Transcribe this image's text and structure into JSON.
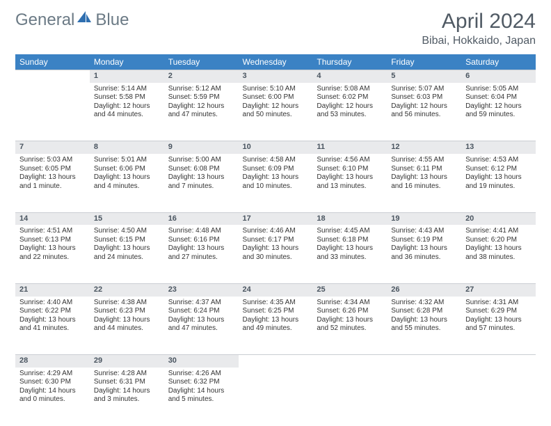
{
  "brand": {
    "part1": "General",
    "part2": "Blue"
  },
  "title": "April 2024",
  "location": "Bibai, Hokkaido, Japan",
  "weekdays": [
    "Sunday",
    "Monday",
    "Tuesday",
    "Wednesday",
    "Thursday",
    "Friday",
    "Saturday"
  ],
  "colors": {
    "header_bg": "#3b82c4",
    "header_fg": "#ffffff",
    "daynum_bg": "#e9eaec",
    "text": "#333333",
    "title_color": "#505a64",
    "logo_gray": "#6b7a85",
    "logo_blue": "#2f6fb0"
  },
  "start_offset": 1,
  "days": [
    {
      "n": 1,
      "sunrise": "5:14 AM",
      "sunset": "5:58 PM",
      "daylight": "12 hours and 44 minutes."
    },
    {
      "n": 2,
      "sunrise": "5:12 AM",
      "sunset": "5:59 PM",
      "daylight": "12 hours and 47 minutes."
    },
    {
      "n": 3,
      "sunrise": "5:10 AM",
      "sunset": "6:00 PM",
      "daylight": "12 hours and 50 minutes."
    },
    {
      "n": 4,
      "sunrise": "5:08 AM",
      "sunset": "6:02 PM",
      "daylight": "12 hours and 53 minutes."
    },
    {
      "n": 5,
      "sunrise": "5:07 AM",
      "sunset": "6:03 PM",
      "daylight": "12 hours and 56 minutes."
    },
    {
      "n": 6,
      "sunrise": "5:05 AM",
      "sunset": "6:04 PM",
      "daylight": "12 hours and 59 minutes."
    },
    {
      "n": 7,
      "sunrise": "5:03 AM",
      "sunset": "6:05 PM",
      "daylight": "13 hours and 1 minute."
    },
    {
      "n": 8,
      "sunrise": "5:01 AM",
      "sunset": "6:06 PM",
      "daylight": "13 hours and 4 minutes."
    },
    {
      "n": 9,
      "sunrise": "5:00 AM",
      "sunset": "6:08 PM",
      "daylight": "13 hours and 7 minutes."
    },
    {
      "n": 10,
      "sunrise": "4:58 AM",
      "sunset": "6:09 PM",
      "daylight": "13 hours and 10 minutes."
    },
    {
      "n": 11,
      "sunrise": "4:56 AM",
      "sunset": "6:10 PM",
      "daylight": "13 hours and 13 minutes."
    },
    {
      "n": 12,
      "sunrise": "4:55 AM",
      "sunset": "6:11 PM",
      "daylight": "13 hours and 16 minutes."
    },
    {
      "n": 13,
      "sunrise": "4:53 AM",
      "sunset": "6:12 PM",
      "daylight": "13 hours and 19 minutes."
    },
    {
      "n": 14,
      "sunrise": "4:51 AM",
      "sunset": "6:13 PM",
      "daylight": "13 hours and 22 minutes."
    },
    {
      "n": 15,
      "sunrise": "4:50 AM",
      "sunset": "6:15 PM",
      "daylight": "13 hours and 24 minutes."
    },
    {
      "n": 16,
      "sunrise": "4:48 AM",
      "sunset": "6:16 PM",
      "daylight": "13 hours and 27 minutes."
    },
    {
      "n": 17,
      "sunrise": "4:46 AM",
      "sunset": "6:17 PM",
      "daylight": "13 hours and 30 minutes."
    },
    {
      "n": 18,
      "sunrise": "4:45 AM",
      "sunset": "6:18 PM",
      "daylight": "13 hours and 33 minutes."
    },
    {
      "n": 19,
      "sunrise": "4:43 AM",
      "sunset": "6:19 PM",
      "daylight": "13 hours and 36 minutes."
    },
    {
      "n": 20,
      "sunrise": "4:41 AM",
      "sunset": "6:20 PM",
      "daylight": "13 hours and 38 minutes."
    },
    {
      "n": 21,
      "sunrise": "4:40 AM",
      "sunset": "6:22 PM",
      "daylight": "13 hours and 41 minutes."
    },
    {
      "n": 22,
      "sunrise": "4:38 AM",
      "sunset": "6:23 PM",
      "daylight": "13 hours and 44 minutes."
    },
    {
      "n": 23,
      "sunrise": "4:37 AM",
      "sunset": "6:24 PM",
      "daylight": "13 hours and 47 minutes."
    },
    {
      "n": 24,
      "sunrise": "4:35 AM",
      "sunset": "6:25 PM",
      "daylight": "13 hours and 49 minutes."
    },
    {
      "n": 25,
      "sunrise": "4:34 AM",
      "sunset": "6:26 PM",
      "daylight": "13 hours and 52 minutes."
    },
    {
      "n": 26,
      "sunrise": "4:32 AM",
      "sunset": "6:28 PM",
      "daylight": "13 hours and 55 minutes."
    },
    {
      "n": 27,
      "sunrise": "4:31 AM",
      "sunset": "6:29 PM",
      "daylight": "13 hours and 57 minutes."
    },
    {
      "n": 28,
      "sunrise": "4:29 AM",
      "sunset": "6:30 PM",
      "daylight": "14 hours and 0 minutes."
    },
    {
      "n": 29,
      "sunrise": "4:28 AM",
      "sunset": "6:31 PM",
      "daylight": "14 hours and 3 minutes."
    },
    {
      "n": 30,
      "sunrise": "4:26 AM",
      "sunset": "6:32 PM",
      "daylight": "14 hours and 5 minutes."
    }
  ]
}
